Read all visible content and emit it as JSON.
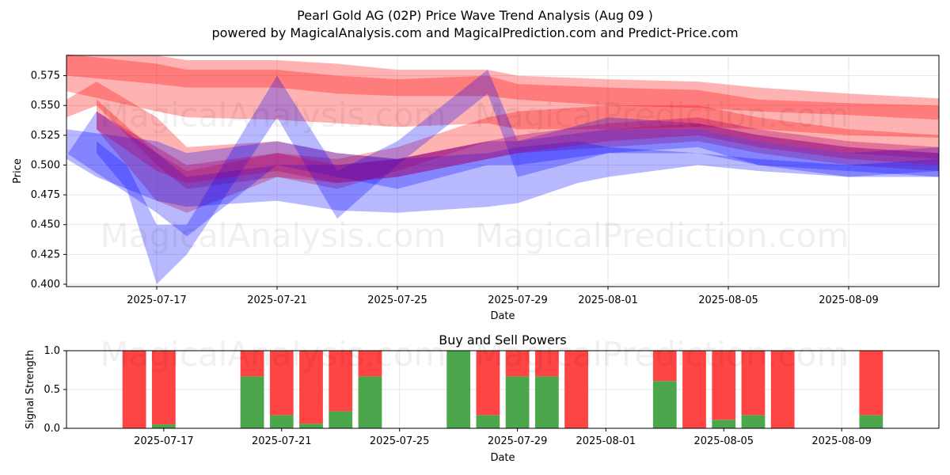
{
  "title_line1": "Pearl Gold AG (02P) Price Wave Trend Analysis (Aug 09 )",
  "title_line2": "powered by MagicalAnalysis.com and MagicalPrediction.com and Predict-Price.com",
  "watermarks": [
    "MagicalAnalysis.com",
    "MagicalPrediction.com"
  ],
  "chart_data": [
    {
      "type": "area",
      "xlabel": "Date",
      "ylabel": "Price",
      "ylim": [
        0.398,
        0.592
      ],
      "xlim": [
        "2025-07-14",
        "2025-08-12"
      ],
      "yticks": [
        "0.400",
        "0.425",
        "0.450",
        "0.475",
        "0.500",
        "0.525",
        "0.550",
        "0.575"
      ],
      "xticks": [
        "2025-07-17",
        "2025-07-21",
        "2025-07-25",
        "2025-07-29",
        "2025-08-01",
        "2025-08-05",
        "2025-08-09"
      ],
      "grid": true,
      "colors": {
        "sell": "#ff0000",
        "buy": "#0000ff",
        "mix": "#b0006a"
      },
      "series": [
        {
          "color": "red",
          "x": [
            "2025-07-14",
            "2025-07-17",
            "2025-07-18",
            "2025-07-21",
            "2025-07-23",
            "2025-07-25",
            "2025-07-28",
            "2025-07-29",
            "2025-08-01",
            "2025-08-04",
            "2025-08-06",
            "2025-08-09",
            "2025-08-12"
          ],
          "upper": [
            0.593,
            0.585,
            0.58,
            0.58,
            0.575,
            0.572,
            0.575,
            0.568,
            0.565,
            0.563,
            0.555,
            0.552,
            0.55
          ],
          "lower": [
            0.562,
            0.545,
            0.54,
            0.538,
            0.535,
            0.532,
            0.535,
            0.53,
            0.53,
            0.532,
            0.53,
            0.525,
            0.523
          ]
        },
        {
          "color": "red",
          "x": [
            "2025-07-14",
            "2025-07-17",
            "2025-07-18",
            "2025-07-21",
            "2025-07-23",
            "2025-07-25",
            "2025-07-28",
            "2025-07-29",
            "2025-08-01",
            "2025-08-04",
            "2025-08-06",
            "2025-08-09",
            "2025-08-12"
          ],
          "upper": [
            0.592,
            0.592,
            0.588,
            0.588,
            0.585,
            0.58,
            0.58,
            0.575,
            0.572,
            0.57,
            0.565,
            0.56,
            0.556
          ],
          "lower": [
            0.575,
            0.568,
            0.565,
            0.565,
            0.56,
            0.558,
            0.558,
            0.555,
            0.55,
            0.548,
            0.545,
            0.542,
            0.538
          ]
        },
        {
          "color": "red",
          "x": [
            "2025-07-14",
            "2025-07-15",
            "2025-07-17",
            "2025-07-18",
            "2025-07-21",
            "2025-07-23",
            "2025-07-25",
            "2025-07-28",
            "2025-07-29",
            "2025-08-01",
            "2025-08-04",
            "2025-08-06",
            "2025-08-09",
            "2025-08-12"
          ],
          "upper": [
            0.555,
            0.57,
            0.54,
            0.515,
            0.52,
            0.51,
            0.505,
            0.52,
            0.525,
            0.53,
            0.535,
            0.525,
            0.515,
            0.51
          ],
          "lower": [
            0.54,
            0.55,
            0.5,
            0.48,
            0.49,
            0.485,
            0.49,
            0.505,
            0.51,
            0.515,
            0.52,
            0.51,
            0.5,
            0.495
          ]
        },
        {
          "color": "red",
          "x": [
            "2025-07-15",
            "2025-07-17",
            "2025-07-18",
            "2025-07-21",
            "2025-07-23",
            "2025-07-25",
            "2025-07-28",
            "2025-07-29",
            "2025-08-01",
            "2025-08-04",
            "2025-08-06",
            "2025-08-09",
            "2025-08-12"
          ],
          "upper": [
            0.555,
            0.51,
            0.495,
            0.51,
            0.505,
            0.515,
            0.54,
            0.545,
            0.55,
            0.55,
            0.54,
            0.53,
            0.525
          ],
          "lower": [
            0.53,
            0.47,
            0.46,
            0.49,
            0.48,
            0.495,
            0.52,
            0.525,
            0.53,
            0.53,
            0.52,
            0.51,
            0.505
          ]
        },
        {
          "color": "blue",
          "x": [
            "2025-07-14",
            "2025-07-15",
            "2025-07-17",
            "2025-07-18",
            "2025-07-21",
            "2025-07-23",
            "2025-07-25",
            "2025-07-28",
            "2025-07-29",
            "2025-07-31",
            "2025-08-01",
            "2025-08-04",
            "2025-08-06",
            "2025-08-09",
            "2025-08-12"
          ],
          "upper": [
            0.508,
            0.545,
            0.51,
            0.49,
            0.5,
            0.5,
            0.505,
            0.51,
            0.515,
            0.52,
            0.515,
            0.51,
            0.505,
            0.5,
            0.505
          ],
          "lower": [
            0.505,
            0.49,
            0.47,
            0.465,
            0.47,
            0.462,
            0.46,
            0.465,
            0.468,
            0.485,
            0.49,
            0.5,
            0.495,
            0.49,
            0.49
          ]
        },
        {
          "color": "blue",
          "x": [
            "2025-07-15",
            "2025-07-16",
            "2025-07-17",
            "2025-07-18",
            "2025-07-21",
            "2025-07-23",
            "2025-07-25",
            "2025-07-28",
            "2025-07-29",
            "2025-08-01",
            "2025-08-04",
            "2025-08-06",
            "2025-08-09",
            "2025-08-12"
          ],
          "upper": [
            0.52,
            0.5,
            0.45,
            0.45,
            0.575,
            0.495,
            0.52,
            0.58,
            0.52,
            0.54,
            0.535,
            0.525,
            0.515,
            0.51
          ],
          "lower": [
            0.51,
            0.48,
            0.4,
            0.425,
            0.54,
            0.455,
            0.5,
            0.56,
            0.49,
            0.51,
            0.51,
            0.5,
            0.495,
            0.49
          ]
        },
        {
          "color": "blue",
          "x": [
            "2025-07-14",
            "2025-07-17",
            "2025-07-18",
            "2025-07-21",
            "2025-07-23",
            "2025-07-25",
            "2025-07-28",
            "2025-07-29",
            "2025-08-01",
            "2025-08-04",
            "2025-08-06",
            "2025-08-09",
            "2025-08-12"
          ],
          "upper": [
            0.53,
            0.52,
            0.51,
            0.52,
            0.51,
            0.505,
            0.52,
            0.52,
            0.53,
            0.53,
            0.52,
            0.51,
            0.515
          ],
          "lower": [
            0.51,
            0.46,
            0.44,
            0.5,
            0.49,
            0.48,
            0.5,
            0.5,
            0.51,
            0.515,
            0.5,
            0.49,
            0.495
          ]
        },
        {
          "color": "mix",
          "x": [
            "2025-07-15",
            "2025-07-17",
            "2025-07-18",
            "2025-07-21",
            "2025-07-23",
            "2025-07-25",
            "2025-07-28",
            "2025-07-29",
            "2025-08-01",
            "2025-08-04",
            "2025-08-06",
            "2025-08-09",
            "2025-08-12"
          ],
          "upper": [
            0.545,
            0.515,
            0.5,
            0.51,
            0.5,
            0.505,
            0.52,
            0.525,
            0.535,
            0.54,
            0.53,
            0.52,
            0.515
          ],
          "lower": [
            0.53,
            0.495,
            0.485,
            0.495,
            0.485,
            0.49,
            0.505,
            0.51,
            0.52,
            0.525,
            0.515,
            0.505,
            0.5
          ]
        }
      ]
    },
    {
      "type": "bar",
      "title": "Buy and Sell Powers",
      "xlabel": "Date",
      "ylabel": "Signal Strength",
      "ylim": [
        0,
        1.0
      ],
      "yticks": [
        "0.0",
        "0.5",
        "1.0"
      ],
      "xticks": [
        "2025-07-17",
        "2025-07-21",
        "2025-07-25",
        "2025-07-29",
        "2025-08-01",
        "2025-08-05",
        "2025-08-09"
      ],
      "colors": {
        "buy": "#4ca64c",
        "sell": "#ff4444"
      },
      "categories": [
        "2025-07-16",
        "2025-07-17",
        "2025-07-20",
        "2025-07-21",
        "2025-07-22",
        "2025-07-23",
        "2025-07-24",
        "2025-07-27",
        "2025-07-28",
        "2025-07-29",
        "2025-07-30",
        "2025-07-31",
        "2025-08-03",
        "2025-08-04",
        "2025-08-05",
        "2025-08-06",
        "2025-08-07",
        "2025-08-10"
      ],
      "series": [
        {
          "name": "buy",
          "values": [
            0.0,
            0.05,
            0.67,
            0.17,
            0.06,
            0.22,
            0.67,
            1.0,
            0.17,
            0.67,
            0.67,
            0.0,
            0.61,
            0.0,
            0.11,
            0.17,
            0.0,
            0.17
          ]
        },
        {
          "name": "sell",
          "values": [
            1.0,
            0.95,
            0.33,
            0.83,
            0.94,
            0.78,
            0.33,
            0.0,
            0.83,
            0.33,
            0.33,
            1.0,
            0.39,
            1.0,
            0.89,
            0.83,
            1.0,
            0.83
          ]
        }
      ]
    }
  ]
}
